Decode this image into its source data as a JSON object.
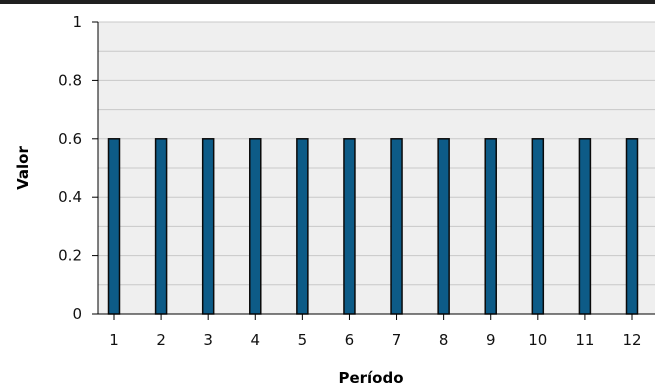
{
  "chart_data": {
    "type": "bar",
    "xlabel": "Período",
    "ylabel": "Valor",
    "categories": [
      "1",
      "2",
      "3",
      "4",
      "5",
      "6",
      "7",
      "8",
      "9",
      "10",
      "11",
      "12"
    ],
    "series": [
      {
        "values": [
          0.6,
          0.6,
          0.6,
          0.6,
          0.6,
          0.6,
          0.6,
          0.6,
          0.6,
          0.6,
          0.6,
          0.6
        ]
      }
    ],
    "ylim": [
      0,
      1
    ],
    "yticks": [
      "0",
      "0.2",
      "0.4",
      "0.6",
      "0.8",
      "1"
    ],
    "grid": true,
    "colors": {
      "bar_fill": "#0d5b87",
      "bar_stroke": "#0a0a0a",
      "plot_background": "#efefef",
      "grid_line": "#c8c8c8",
      "axis_line": "#000000"
    }
  }
}
